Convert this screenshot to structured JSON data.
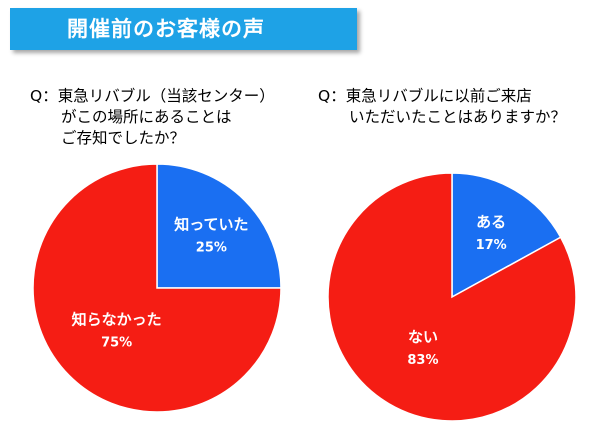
{
  "title": "開催前のお客様の声",
  "questions": [
    "Q：東急リバブル（当該センター）\n　　がこの場所にあることは\n　　ご存知でしたか？",
    "Q：東急リバブルに以前ご来店\n　　いただいたことはありますか？"
  ],
  "colors": {
    "slice_a": "#1a6ff2",
    "slice_b": "#f51d14",
    "title_bg": "#1ea2e6"
  },
  "chart_data": [
    {
      "type": "pie",
      "slices": [
        {
          "label": "知っていた",
          "value": 25,
          "value_label": "25%",
          "color": "#1a6ff2"
        },
        {
          "label": "知らなかった",
          "value": 75,
          "value_label": "75%",
          "color": "#f51d14"
        }
      ]
    },
    {
      "type": "pie",
      "slices": [
        {
          "label": "ある",
          "value": 17,
          "value_label": "17%",
          "color": "#1a6ff2"
        },
        {
          "label": "ない",
          "value": 83,
          "value_label": "83%",
          "color": "#f51d14"
        }
      ]
    }
  ]
}
